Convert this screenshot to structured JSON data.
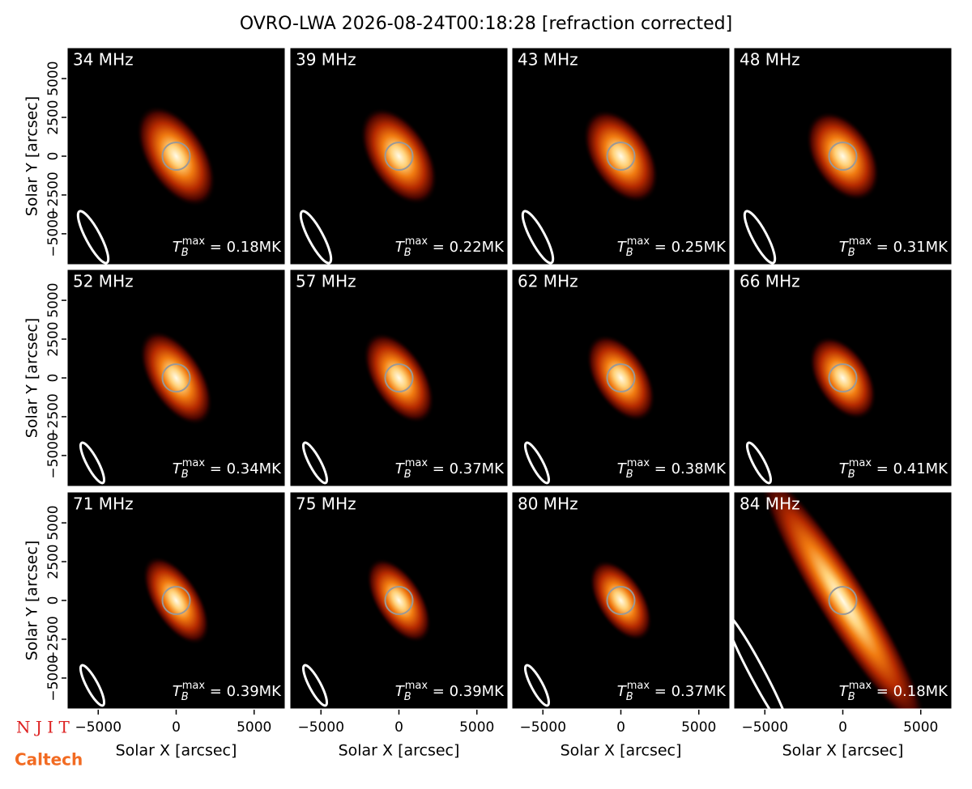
{
  "title": "OVRO-LWA 2026-08-24T00:18:28 [refraction corrected]",
  "xlabel": "Solar X [arcsec]",
  "ylabel": "Solar Y [arcsec]",
  "xlim": [
    -7040,
    7040
  ],
  "ylim": [
    -7040,
    7040
  ],
  "xticks": [
    {
      "value": -5000,
      "label": "−5000"
    },
    0,
    5000
  ],
  "yticks": [
    {
      "value": -5000,
      "label": "−5000"
    },
    {
      "value": -2500,
      "label": "−2500"
    },
    0,
    2500,
    5000
  ],
  "tb_symbol": "T",
  "tb_sub": "B",
  "tb_sup": "max",
  "tb_eq": " = ",
  "logos": [
    "N J I T",
    "Caltech"
  ],
  "chart_data": [
    {
      "type": "image",
      "title": "34 MHz",
      "values": [
        0.18
      ],
      "value_labels": [
        "0.18MK"
      ]
    },
    {
      "type": "image",
      "title": "39 MHz",
      "values": [
        0.22
      ],
      "value_labels": [
        "0.22MK"
      ]
    },
    {
      "type": "image",
      "title": "43 MHz",
      "values": [
        0.25
      ],
      "value_labels": [
        "0.25MK"
      ]
    },
    {
      "type": "image",
      "title": "48 MHz",
      "values": [
        0.31
      ],
      "value_labels": [
        "0.31MK"
      ]
    },
    {
      "type": "image",
      "title": "52 MHz",
      "values": [
        0.34
      ],
      "value_labels": [
        "0.34MK"
      ]
    },
    {
      "type": "image",
      "title": "57 MHz",
      "values": [
        0.37
      ],
      "value_labels": [
        "0.37MK"
      ]
    },
    {
      "type": "image",
      "title": "62 MHz",
      "values": [
        0.38
      ],
      "value_labels": [
        "0.38MK"
      ]
    },
    {
      "type": "image",
      "title": "66 MHz",
      "values": [
        0.41
      ],
      "value_labels": [
        "0.41MK"
      ]
    },
    {
      "type": "image",
      "title": "71 MHz",
      "values": [
        0.39
      ],
      "value_labels": [
        "0.39MK"
      ]
    },
    {
      "type": "image",
      "title": "75 MHz",
      "values": [
        0.39
      ],
      "value_labels": [
        "0.39MK"
      ]
    },
    {
      "type": "image",
      "title": "80 MHz",
      "values": [
        0.37
      ],
      "value_labels": [
        "0.37MK"
      ]
    },
    {
      "type": "image",
      "title": "84 MHz",
      "values": [
        0.18
      ],
      "value_labels": [
        "0.18MK"
      ]
    }
  ]
}
